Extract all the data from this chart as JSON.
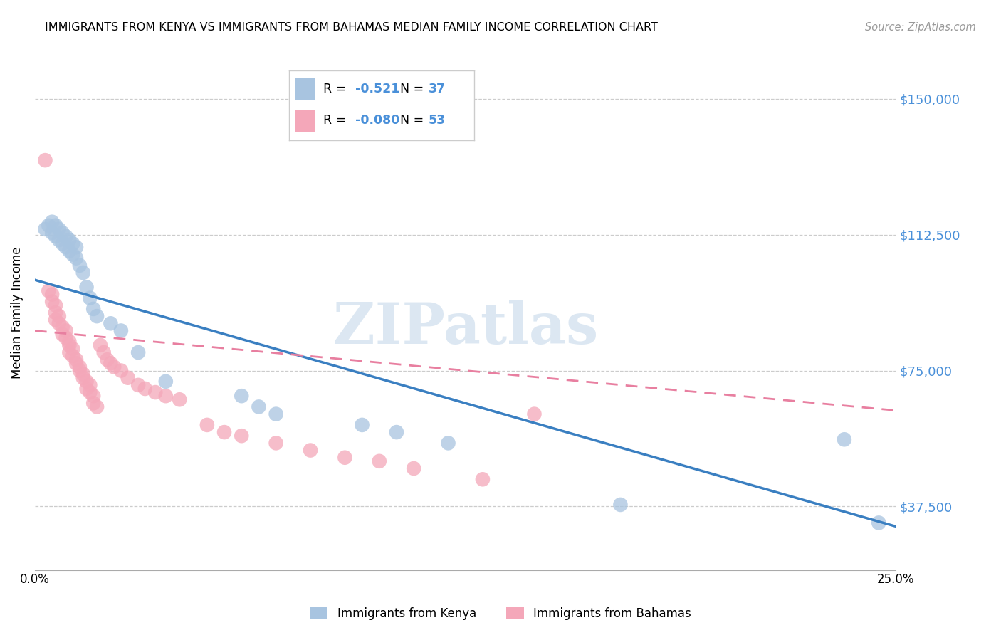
{
  "title": "IMMIGRANTS FROM KENYA VS IMMIGRANTS FROM BAHAMAS MEDIAN FAMILY INCOME CORRELATION CHART",
  "source": "Source: ZipAtlas.com",
  "ylabel": "Median Family Income",
  "xlim": [
    0.0,
    0.25
  ],
  "ylim": [
    20000,
    162000
  ],
  "yticks": [
    37500,
    75000,
    112500,
    150000
  ],
  "ytick_labels": [
    "$37,500",
    "$75,000",
    "$112,500",
    "$150,000"
  ],
  "xticks": [
    0.0,
    0.05,
    0.1,
    0.15,
    0.2,
    0.25
  ],
  "xtick_labels": [
    "0.0%",
    "",
    "",
    "",
    "",
    "25.0%"
  ],
  "kenya_R": -0.521,
  "kenya_N": 37,
  "bahamas_R": -0.08,
  "bahamas_N": 53,
  "kenya_color": "#a8c4e0",
  "bahamas_color": "#f4a7b9",
  "kenya_line_color": "#3a7fc1",
  "bahamas_line_color": "#e87fa0",
  "watermark": "ZIPatlas",
  "watermark_color": "#c5d8ea",
  "kenya_line_x0": 0.0,
  "kenya_line_y0": 100000,
  "kenya_line_x1": 0.25,
  "kenya_line_y1": 32000,
  "bahamas_line_x0": 0.0,
  "bahamas_line_y0": 86000,
  "bahamas_line_x1": 0.25,
  "bahamas_line_y1": 64000,
  "kenya_scatter_x": [
    0.003,
    0.004,
    0.005,
    0.005,
    0.006,
    0.006,
    0.007,
    0.007,
    0.008,
    0.008,
    0.009,
    0.009,
    0.01,
    0.01,
    0.011,
    0.011,
    0.012,
    0.012,
    0.013,
    0.014,
    0.015,
    0.016,
    0.017,
    0.018,
    0.022,
    0.025,
    0.03,
    0.038,
    0.06,
    0.065,
    0.07,
    0.095,
    0.105,
    0.12,
    0.17,
    0.235,
    0.245
  ],
  "kenya_scatter_y": [
    114000,
    115000,
    116000,
    113000,
    115000,
    112000,
    114000,
    111000,
    113000,
    110000,
    112000,
    109000,
    111000,
    108000,
    110000,
    107000,
    109000,
    106000,
    104000,
    102000,
    98000,
    95000,
    92000,
    90000,
    88000,
    86000,
    80000,
    72000,
    68000,
    65000,
    63000,
    60000,
    58000,
    55000,
    38000,
    56000,
    33000
  ],
  "bahamas_scatter_x": [
    0.003,
    0.004,
    0.005,
    0.005,
    0.006,
    0.006,
    0.006,
    0.007,
    0.007,
    0.008,
    0.008,
    0.009,
    0.009,
    0.01,
    0.01,
    0.01,
    0.011,
    0.011,
    0.012,
    0.012,
    0.013,
    0.013,
    0.014,
    0.014,
    0.015,
    0.015,
    0.016,
    0.016,
    0.017,
    0.017,
    0.018,
    0.019,
    0.02,
    0.021,
    0.022,
    0.023,
    0.025,
    0.027,
    0.03,
    0.032,
    0.035,
    0.038,
    0.042,
    0.05,
    0.055,
    0.06,
    0.07,
    0.08,
    0.09,
    0.1,
    0.11,
    0.13,
    0.145
  ],
  "bahamas_scatter_y": [
    133000,
    97000,
    96000,
    94000,
    93000,
    91000,
    89000,
    90000,
    88000,
    87000,
    85000,
    86000,
    84000,
    83000,
    82000,
    80000,
    81000,
    79000,
    78000,
    77000,
    76000,
    75000,
    74000,
    73000,
    72000,
    70000,
    71000,
    69000,
    68000,
    66000,
    65000,
    82000,
    80000,
    78000,
    77000,
    76000,
    75000,
    73000,
    71000,
    70000,
    69000,
    68000,
    67000,
    60000,
    58000,
    57000,
    55000,
    53000,
    51000,
    50000,
    48000,
    45000,
    63000
  ]
}
